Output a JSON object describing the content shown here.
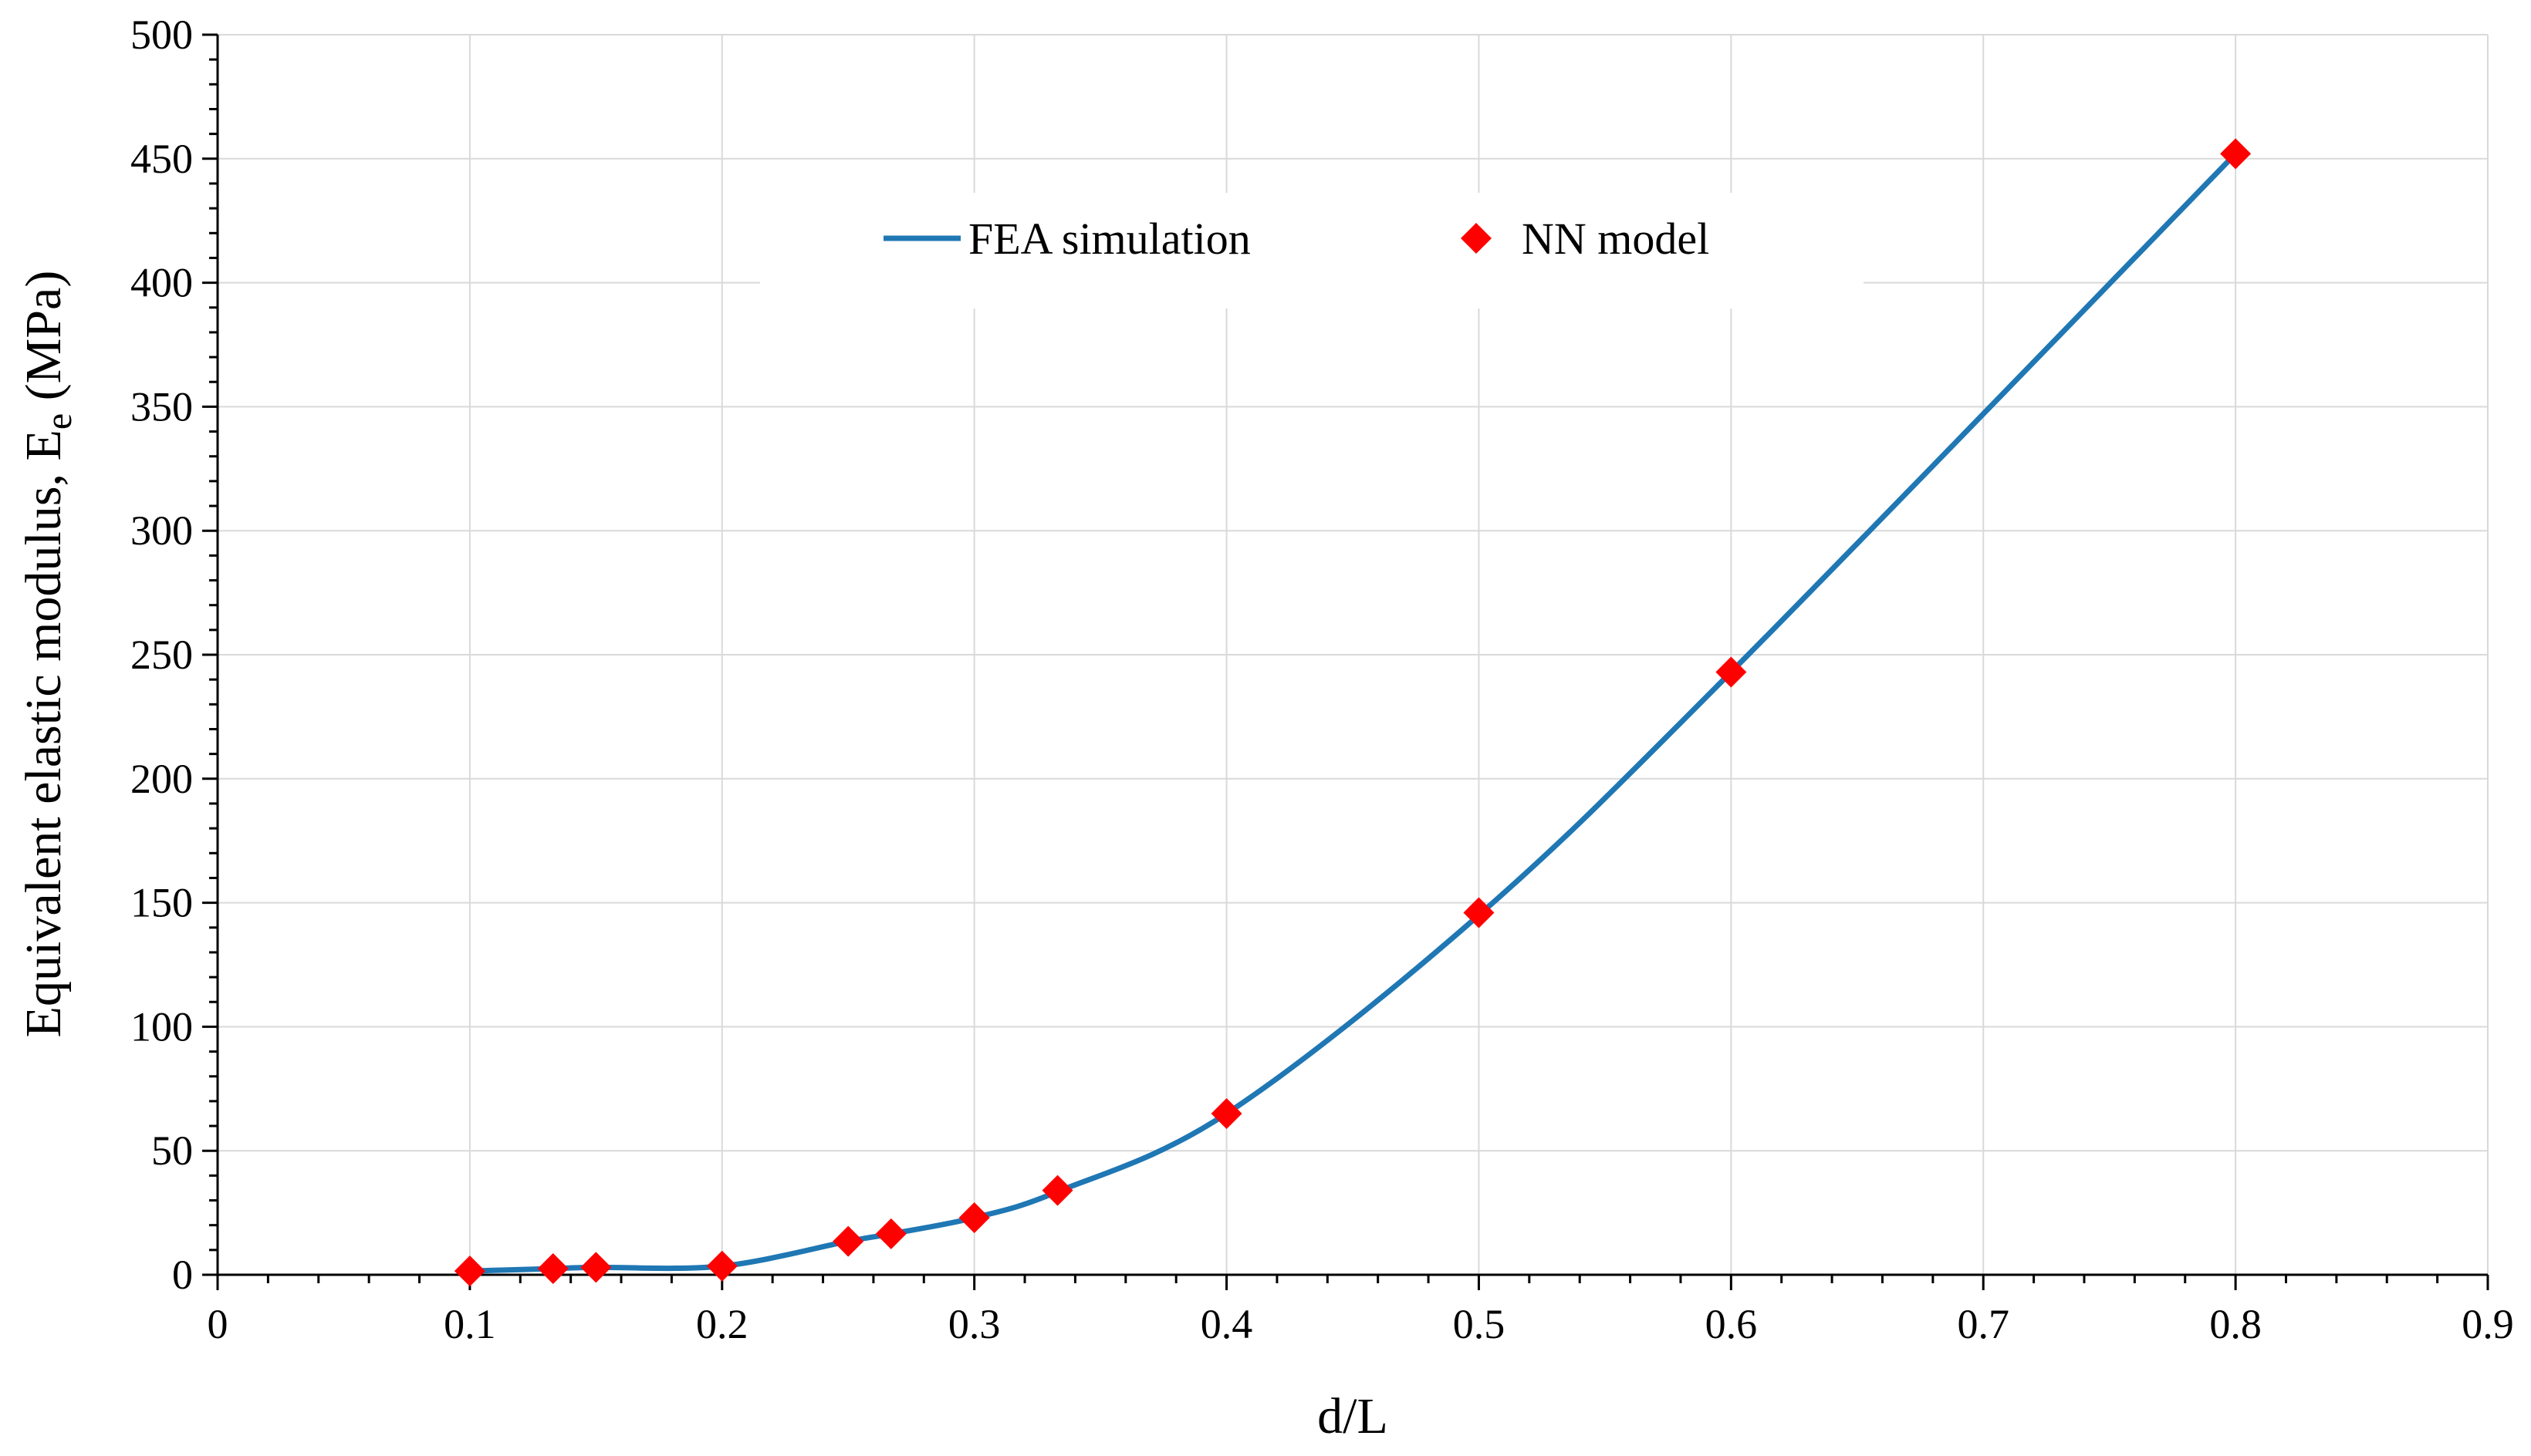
{
  "chart_data": {
    "type": "line",
    "title": "",
    "xlabel": "d/L",
    "ylabel": {
      "main": "Equivalent elastic modulus, E",
      "subscript": "e",
      "suffix": " (MPa)"
    },
    "xlim": [
      0,
      0.9
    ],
    "ylim": [
      0,
      500
    ],
    "x_ticks": [
      0,
      0.1,
      0.2,
      0.3,
      0.4,
      0.5,
      0.6,
      0.7,
      0.8,
      0.9
    ],
    "x_tick_labels": [
      "0",
      "0.1",
      "0.2",
      "0.3",
      "0.4",
      "0.5",
      "0.6",
      "0.7",
      "0.8",
      "0.9"
    ],
    "y_ticks": [
      0,
      50,
      100,
      150,
      200,
      250,
      300,
      350,
      400,
      450,
      500
    ],
    "y_tick_labels": [
      "0",
      "50",
      "100",
      "150",
      "200",
      "250",
      "300",
      "350",
      "400",
      "450",
      "500"
    ],
    "grid": true,
    "legend_position": "top-center",
    "series": [
      {
        "name": "FEA simulation",
        "style": "line",
        "color": "#1f77b4",
        "x": [
          0.1,
          0.133,
          0.15,
          0.2,
          0.25,
          0.267,
          0.3,
          0.333,
          0.4,
          0.5,
          0.6,
          0.8
        ],
        "y": [
          1.5,
          2.5,
          3,
          3.5,
          13.5,
          16.5,
          23,
          33.5,
          65,
          145,
          243,
          452
        ]
      },
      {
        "name": "NN model",
        "style": "marker",
        "marker": "diamond",
        "color": "#ff0000",
        "x": [
          0.1,
          0.133,
          0.15,
          0.2,
          0.25,
          0.267,
          0.3,
          0.333,
          0.4,
          0.5,
          0.6,
          0.8
        ],
        "y": [
          1.5,
          2.5,
          3,
          3.5,
          13.5,
          16.5,
          23,
          34,
          65,
          146,
          243,
          452
        ]
      }
    ]
  }
}
